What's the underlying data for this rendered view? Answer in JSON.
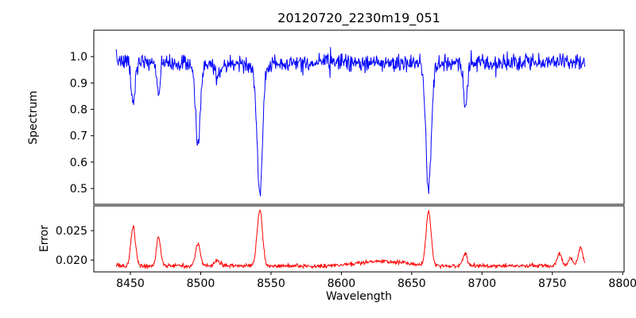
{
  "figure": {
    "background": "#ffffff"
  },
  "chart_data": [
    {
      "type": "line",
      "role": "spectrum",
      "title": "20120720_2230m19_051",
      "ylabel": "Spectrum",
      "line_color": "#0000ff",
      "xlim": [
        8424,
        8801
      ],
      "ylim": [
        0.44,
        1.1
      ],
      "x_data_range": [
        8440,
        8773
      ],
      "baseline": 0.977,
      "noise_sigma": 0.0165,
      "wiggle": {
        "amplitude": 0.005,
        "period": 160,
        "x_ref": 8555
      },
      "y_ticks": [
        {
          "v": 0.5,
          "label": "0.5"
        },
        {
          "v": 0.6,
          "label": "0.6"
        },
        {
          "v": 0.7,
          "label": "0.7"
        },
        {
          "v": 0.8,
          "label": "0.8"
        },
        {
          "v": 0.9,
          "label": "0.9"
        },
        {
          "v": 1.0,
          "label": "1.0"
        }
      ],
      "absorption_lines": [
        {
          "center": 8452,
          "depth": 0.16,
          "sigma": 1.4
        },
        {
          "center": 8470,
          "depth": 0.11,
          "sigma": 1.3
        },
        {
          "center": 8498,
          "depth": 0.31,
          "sigma": 1.7
        },
        {
          "center": 8512,
          "depth": 0.05,
          "sigma": 1.5
        },
        {
          "center": 8542,
          "depth": 0.5,
          "sigma": 2.0
        },
        {
          "center": 8662,
          "depth": 0.48,
          "sigma": 1.9
        },
        {
          "center": 8688,
          "depth": 0.16,
          "sigma": 1.4
        }
      ]
    },
    {
      "type": "line",
      "role": "error",
      "ylabel": "Error",
      "xlabel": "Wavelength",
      "line_color": "#ff0000",
      "xlim": [
        8424,
        8801
      ],
      "ylim": [
        0.018,
        0.0292
      ],
      "x_data_range": [
        8440,
        8773
      ],
      "baseline": 0.019,
      "noise_sigma": 0.00018,
      "y_ticks": [
        {
          "v": 0.02,
          "label": "0.020"
        },
        {
          "v": 0.025,
          "label": "0.025"
        }
      ],
      "x_ticks": [
        {
          "v": 8450,
          "label": "8450"
        },
        {
          "v": 8500,
          "label": "8500"
        },
        {
          "v": 8550,
          "label": "8550"
        },
        {
          "v": 8600,
          "label": "8600"
        },
        {
          "v": 8650,
          "label": "8650"
        },
        {
          "v": 8700,
          "label": "8700"
        },
        {
          "v": 8750,
          "label": "8750"
        },
        {
          "v": 8800,
          "label": "8800"
        }
      ],
      "peaks": [
        {
          "center": 8452,
          "height": 0.0068,
          "sigma": 1.6
        },
        {
          "center": 8470,
          "height": 0.0048,
          "sigma": 1.5
        },
        {
          "center": 8498,
          "height": 0.0038,
          "sigma": 1.7
        },
        {
          "center": 8512,
          "height": 0.001,
          "sigma": 2.0
        },
        {
          "center": 8542,
          "height": 0.0095,
          "sigma": 1.9
        },
        {
          "center": 8630,
          "height": 0.0008,
          "sigma": 16
        },
        {
          "center": 8662,
          "height": 0.0092,
          "sigma": 1.8
        },
        {
          "center": 8688,
          "height": 0.0022,
          "sigma": 1.5
        },
        {
          "center": 8755,
          "height": 0.002,
          "sigma": 1.6
        },
        {
          "center": 8763,
          "height": 0.0015,
          "sigma": 1.4
        },
        {
          "center": 8770,
          "height": 0.0032,
          "sigma": 1.6
        }
      ]
    }
  ]
}
